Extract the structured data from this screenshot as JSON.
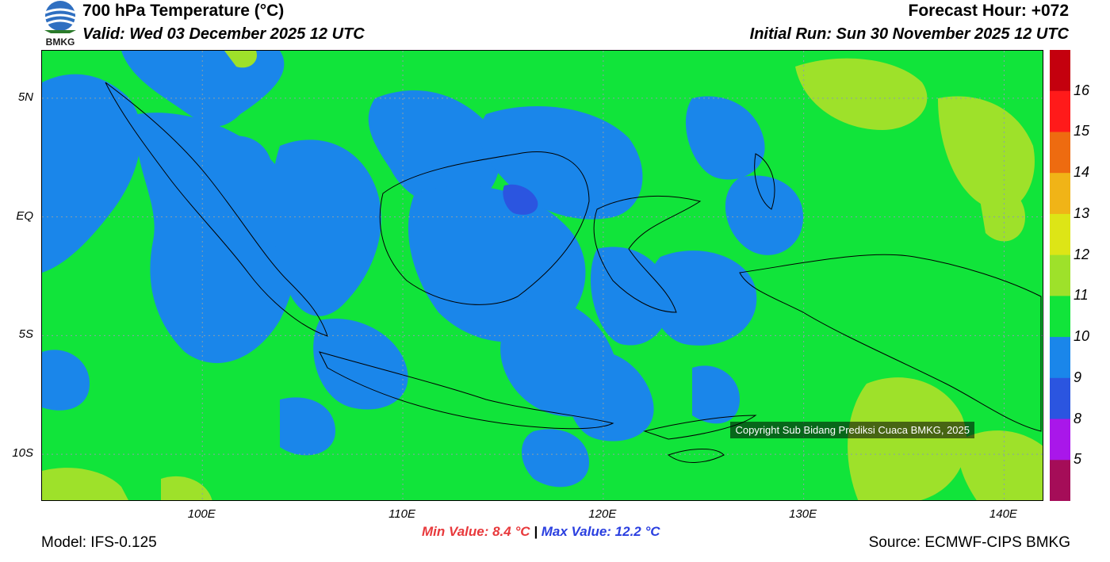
{
  "logo": {
    "text": "BMKG"
  },
  "header": {
    "title": "700 hPa Temperature (°C)",
    "valid": "Valid: Wed 03 December 2025 12 UTC",
    "forecast_hour": "Forecast Hour: +072",
    "initial_run": "Initial Run: Sun 30 November 2025 12 UTC"
  },
  "map": {
    "lat_labels": [
      "5N",
      "EQ",
      "5S",
      "10S"
    ],
    "lon_labels": [
      "100E",
      "110E",
      "120E",
      "130E",
      "140E"
    ],
    "lat_values": [
      5,
      0,
      -5,
      -10
    ],
    "lon_values": [
      100,
      110,
      120,
      130,
      140
    ],
    "lon_range": [
      92,
      142
    ],
    "lat_range": [
      -12,
      7
    ],
    "copyright": "Copyright Sub Bidang Prediksi Cuaca BMKG, 2025"
  },
  "colorbar": {
    "labels": [
      "16",
      "15",
      "14",
      "13",
      "12",
      "11",
      "10",
      "9",
      "8",
      "5"
    ],
    "colors": [
      "#c4000e",
      "#ff1a1a",
      "#ee6b10",
      "#f0b417",
      "#dde516",
      "#9ee12a",
      "#11e43a",
      "#1a86ea",
      "#2b55e0",
      "#a917ea",
      "#a50d58"
    ]
  },
  "footer": {
    "min_value": "Min Value: 8.4 °C",
    "separator": "|",
    "max_value": "Max Value: 12.2 °C",
    "model": "Model: IFS-0.125",
    "source": "Source: ECMWF-CIPS BMKG"
  }
}
